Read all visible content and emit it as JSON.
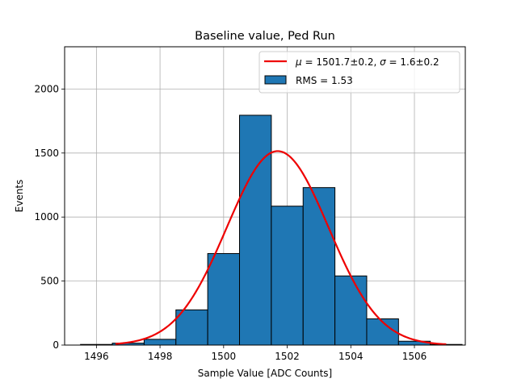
{
  "chart_data": {
    "type": "bar",
    "title": "Baseline value, Ped Run",
    "xlabel": "Sample Value [ADC Counts]",
    "ylabel": "Events",
    "xlim": [
      1495,
      1507.6
    ],
    "ylim": [
      0,
      2330
    ],
    "grid": true,
    "legend_position": "top-right",
    "xticks": [
      1496,
      1498,
      1500,
      1502,
      1504,
      1506
    ],
    "yticks": [
      0,
      500,
      1000,
      1500,
      2000
    ],
    "histogram": {
      "name": "RMS = 1.53",
      "color": "#1f77b4",
      "edgecolor": "#000000",
      "bins": [
        {
          "x0": 1495.5,
          "x1": 1496.5,
          "value": 5
        },
        {
          "x0": 1496.5,
          "x1": 1497.5,
          "value": 15
        },
        {
          "x0": 1497.5,
          "x1": 1498.5,
          "value": 45
        },
        {
          "x0": 1498.5,
          "x1": 1499.5,
          "value": 275
        },
        {
          "x0": 1499.5,
          "x1": 1500.5,
          "value": 715
        },
        {
          "x0": 1500.5,
          "x1": 1501.5,
          "value": 1795
        },
        {
          "x0": 1501.5,
          "x1": 1502.5,
          "value": 1085
        },
        {
          "x0": 1502.5,
          "x1": 1503.5,
          "value": 1230
        },
        {
          "x0": 1503.5,
          "x1": 1504.5,
          "value": 540
        },
        {
          "x0": 1504.5,
          "x1": 1505.5,
          "value": 205
        },
        {
          "x0": 1505.5,
          "x1": 1506.5,
          "value": 30
        },
        {
          "x0": 1506.5,
          "x1": 1507.5,
          "value": 5
        }
      ]
    },
    "fit": {
      "name": "μ = 1501.7±0.2, σ = 1.6±0.2",
      "name_mu": "μ",
      "name_mu_text": " = 1501.7±0.2, ",
      "name_sigma": "σ",
      "name_sigma_text": " = 1.6±0.2",
      "color": "#ee0000",
      "type": "gaussian",
      "mu": 1501.7,
      "sigma": 1.6,
      "amplitude": 1515,
      "x_range": [
        1496.6,
        1507.0
      ]
    }
  }
}
